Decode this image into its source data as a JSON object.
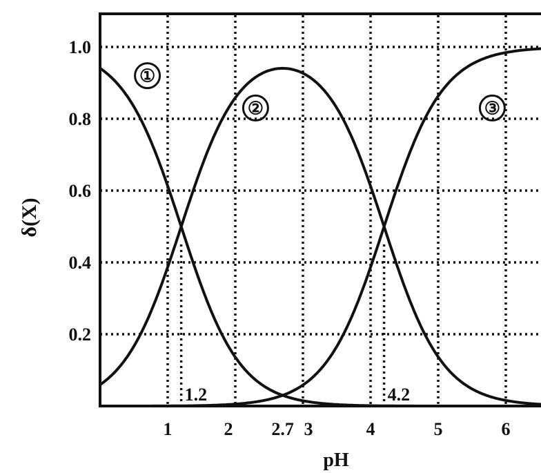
{
  "chart_data": {
    "type": "line",
    "xlabel": "pH",
    "ylabel": "δ(X)",
    "xlim": [
      0,
      6.3
    ],
    "ylim": [
      0,
      1.1
    ],
    "x_ticks": [
      "1",
      "2",
      "2.7",
      "3",
      "4",
      "5",
      "6"
    ],
    "x_tick_values": [
      1,
      2,
      2.7,
      3,
      4,
      5,
      6
    ],
    "y_ticks": [
      "0.2",
      "0.4",
      "0.6",
      "0.8",
      "1.0"
    ],
    "y_tick_values": [
      0.2,
      0.4,
      0.6,
      0.8,
      1.0
    ],
    "grid": true,
    "grid_style": "dotted",
    "annotations": [
      {
        "text": "1.2",
        "x": 1.2,
        "y": 0
      },
      {
        "text": "4.2",
        "x": 4.2,
        "y": 0
      }
    ],
    "series": [
      {
        "name": "①",
        "pKa1": 1.2,
        "pKa2": 4.2,
        "species": 0,
        "label_at": [
          0.7,
          0.92
        ]
      },
      {
        "name": "②",
        "pKa1": 1.2,
        "pKa2": 4.2,
        "species": 1,
        "label_at": [
          2.3,
          0.83
        ]
      },
      {
        "name": "③",
        "pKa1": 1.2,
        "pKa2": 4.2,
        "species": 2,
        "label_at": [
          5.8,
          0.83
        ]
      }
    ],
    "sample_points": {
      "x": [
        0,
        1,
        1.2,
        2,
        2.7,
        3,
        4,
        4.2,
        5,
        6
      ],
      "species_0": [
        0.94,
        0.61,
        0.5,
        0.14,
        0.03,
        0.02,
        0.0,
        0.0,
        0.0,
        0.0
      ],
      "species_1": [
        0.06,
        0.39,
        0.5,
        0.86,
        0.94,
        0.92,
        0.61,
        0.5,
        0.14,
        0.02
      ],
      "species_2": [
        0.0,
        0.0,
        0.0,
        0.0,
        0.03,
        0.06,
        0.39,
        0.5,
        0.86,
        0.98
      ]
    }
  }
}
